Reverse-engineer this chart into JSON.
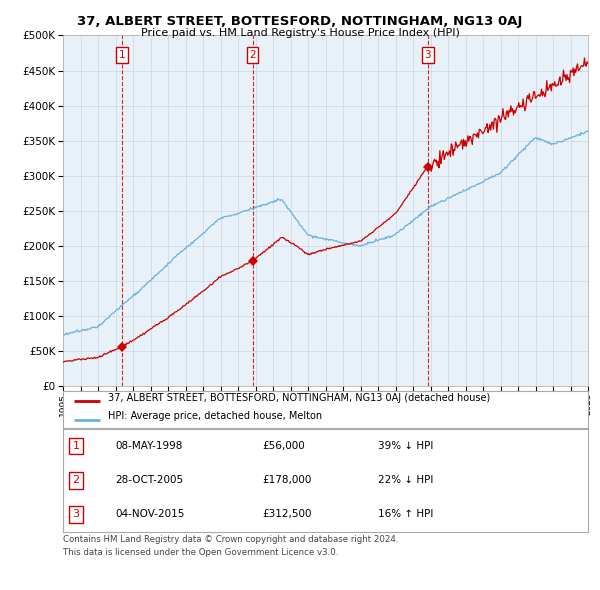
{
  "title": "37, ALBERT STREET, BOTTESFORD, NOTTINGHAM, NG13 0AJ",
  "subtitle": "Price paid vs. HM Land Registry's House Price Index (HPI)",
  "sale_annotations": [
    {
      "label": "1",
      "date": "08-MAY-1998",
      "price": "£56,000",
      "hpi": "39% ↓ HPI"
    },
    {
      "label": "2",
      "date": "28-OCT-2005",
      "price": "£178,000",
      "hpi": "22% ↓ HPI"
    },
    {
      "label": "3",
      "date": "04-NOV-2015",
      "price": "£312,500",
      "hpi": "16% ↑ HPI"
    }
  ],
  "legend_line1": "37, ALBERT STREET, BOTTESFORD, NOTTINGHAM, NG13 0AJ (detached house)",
  "legend_line2": "HPI: Average price, detached house, Melton",
  "footer1": "Contains HM Land Registry data © Crown copyright and database right 2024.",
  "footer2": "This data is licensed under the Open Government Licence v3.0.",
  "hpi_color": "#6ab0e0",
  "price_color": "#cc0000",
  "dashed_color": "#cc0000",
  "chart_bg": "#e8f0f8",
  "background_color": "#ffffff",
  "ylim": [
    0,
    500000
  ],
  "yticks": [
    0,
    50000,
    100000,
    150000,
    200000,
    250000,
    300000,
    350000,
    400000,
    450000,
    500000
  ],
  "xstart": 1995,
  "xend": 2025,
  "sale_times": [
    1998.35,
    2005.83,
    2015.84
  ],
  "sale_prices": [
    56000,
    178000,
    312500
  ]
}
